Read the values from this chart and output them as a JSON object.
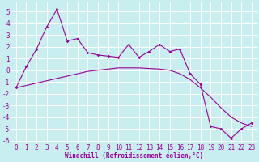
{
  "xlabel": "Windchill (Refroidissement éolien,°C)",
  "background_color": "#c8eef0",
  "grid_color": "#c0dfe0",
  "line_color": "#990099",
  "x_data": [
    0,
    1,
    2,
    3,
    4,
    5,
    6,
    7,
    8,
    9,
    10,
    11,
    12,
    13,
    14,
    15,
    16,
    17,
    18,
    19,
    20,
    21,
    22,
    23
  ],
  "y_zigzag": [
    -1.5,
    0.3,
    1.8,
    3.7,
    5.2,
    2.5,
    2.7,
    1.5,
    1.3,
    1.2,
    1.1,
    2.2,
    1.1,
    1.6,
    2.2,
    1.6,
    1.8,
    -0.3,
    -1.2,
    -4.8,
    -5.0,
    -5.8,
    -5.0,
    -4.5
  ],
  "y_trend": [
    -1.5,
    -1.3,
    -1.1,
    -0.9,
    -0.7,
    -0.5,
    -0.3,
    -0.1,
    0.0,
    0.1,
    0.2,
    0.2,
    0.2,
    0.15,
    0.1,
    0.0,
    -0.3,
    -0.8,
    -1.5,
    -2.3,
    -3.2,
    -4.0,
    -4.5,
    -4.8
  ],
  "xlim": [
    -0.5,
    23.5
  ],
  "ylim": [
    -6.2,
    5.8
  ],
  "yticks": [
    -6,
    -5,
    -4,
    -3,
    -2,
    -1,
    0,
    1,
    2,
    3,
    4,
    5
  ],
  "xticks": [
    0,
    1,
    2,
    3,
    4,
    5,
    6,
    7,
    8,
    9,
    10,
    11,
    12,
    13,
    14,
    15,
    16,
    17,
    18,
    19,
    20,
    21,
    22,
    23
  ],
  "tick_fontsize": 5.5,
  "xlabel_fontsize": 5.5
}
